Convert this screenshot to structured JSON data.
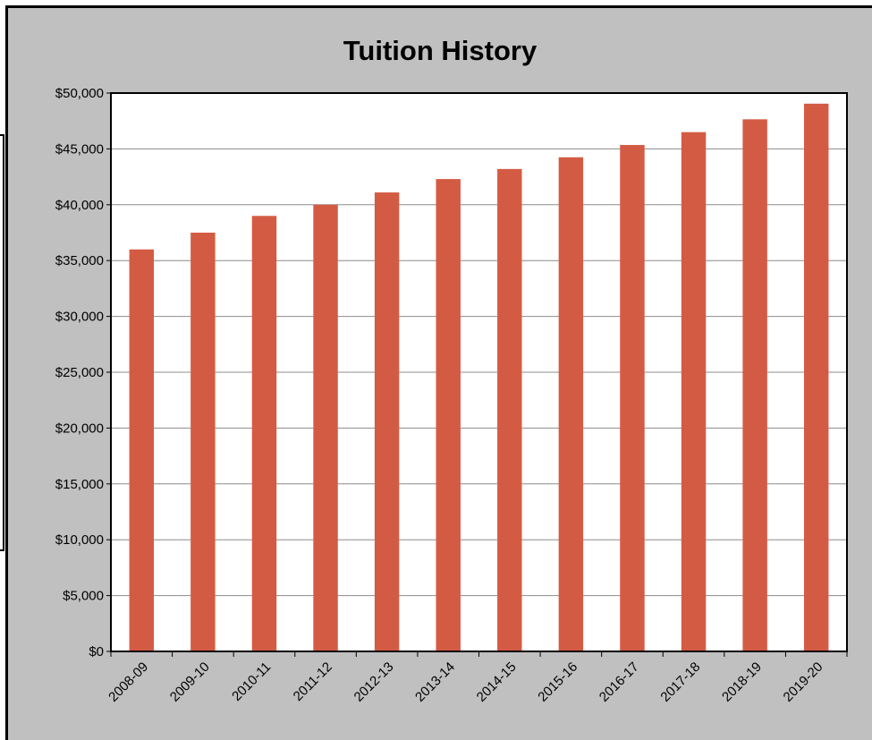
{
  "chart_data": {
    "type": "bar",
    "title": "Tuition History",
    "xlabel": "",
    "ylabel": "",
    "categories": [
      "2008-09",
      "2009-10",
      "2010-11",
      "2011-12",
      "2012-13",
      "2013-14",
      "2014-15",
      "2015-16",
      "2016-17",
      "2017-18",
      "2018-19",
      "2019-20"
    ],
    "values": [
      36000,
      37500,
      39000,
      40000,
      41100,
      42300,
      43200,
      44250,
      45350,
      46500,
      47650,
      49050
    ],
    "ylim": [
      0,
      50000
    ],
    "yticks": [
      0,
      5000,
      10000,
      15000,
      20000,
      25000,
      30000,
      35000,
      40000,
      45000,
      50000
    ],
    "ytick_labels": [
      "$0",
      "$5,000",
      "$10,000",
      "$15,000",
      "$20,000",
      "$25,000",
      "$30,000",
      "$35,000",
      "$40,000",
      "$45,000",
      "$50,000"
    ],
    "grid": true,
    "legend": "none",
    "colors": {
      "bar": "#d45b43",
      "frame": "#c0c0c0",
      "plot": "#ffffff"
    }
  }
}
